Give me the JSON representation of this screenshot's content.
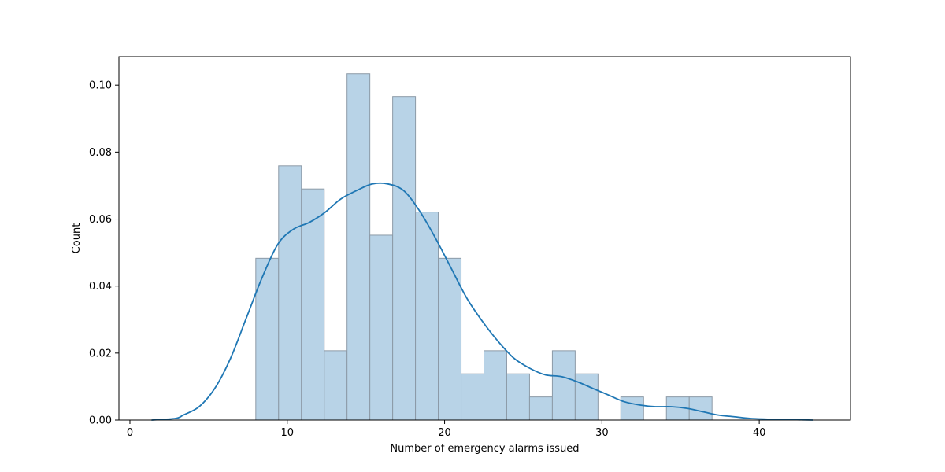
{
  "chart_data": {
    "type": "bar",
    "title": "",
    "xlabel": "Number of emergency alarms issued",
    "ylabel": "Count",
    "xlim": [
      -0.7,
      45.8
    ],
    "ylim": [
      0,
      0.1085
    ],
    "x_ticks": [
      0,
      10,
      20,
      30,
      40
    ],
    "x_tick_labels": [
      "0",
      "10",
      "20",
      "30",
      "40"
    ],
    "y_ticks": [
      0.0,
      0.02,
      0.04,
      0.06,
      0.08,
      0.1
    ],
    "y_tick_labels": [
      "0.00",
      "0.02",
      "0.04",
      "0.06",
      "0.08",
      "0.10"
    ],
    "bin_width": 1.45,
    "bars": [
      {
        "x0": 8.0,
        "x1": 9.45,
        "value": 0.0483
      },
      {
        "x0": 9.45,
        "x1": 10.9,
        "value": 0.0759
      },
      {
        "x0": 10.9,
        "x1": 12.35,
        "value": 0.069
      },
      {
        "x0": 12.35,
        "x1": 13.8,
        "value": 0.0207
      },
      {
        "x0": 13.8,
        "x1": 15.25,
        "value": 0.1034
      },
      {
        "x0": 15.25,
        "x1": 16.7,
        "value": 0.0552
      },
      {
        "x0": 16.7,
        "x1": 18.15,
        "value": 0.0966
      },
      {
        "x0": 18.15,
        "x1": 19.6,
        "value": 0.0621
      },
      {
        "x0": 19.6,
        "x1": 21.05,
        "value": 0.0483
      },
      {
        "x0": 21.05,
        "x1": 22.5,
        "value": 0.0138
      },
      {
        "x0": 22.5,
        "x1": 23.95,
        "value": 0.0207
      },
      {
        "x0": 23.95,
        "x1": 25.4,
        "value": 0.0138
      },
      {
        "x0": 25.4,
        "x1": 26.85,
        "value": 0.0069
      },
      {
        "x0": 26.85,
        "x1": 28.3,
        "value": 0.0207
      },
      {
        "x0": 28.3,
        "x1": 29.75,
        "value": 0.0138
      },
      {
        "x0": 29.75,
        "x1": 31.2,
        "value": 0.0
      },
      {
        "x0": 31.2,
        "x1": 32.65,
        "value": 0.0069
      },
      {
        "x0": 32.65,
        "x1": 34.1,
        "value": 0.0
      },
      {
        "x0": 34.1,
        "x1": 35.55,
        "value": 0.0069
      },
      {
        "x0": 35.55,
        "x1": 37.0,
        "value": 0.0069
      }
    ],
    "kde": {
      "x": [
        1.4,
        2.9,
        3.4,
        4.4,
        5.4,
        6.4,
        7.4,
        8.4,
        9.4,
        10.4,
        11.4,
        12.4,
        13.4,
        14.4,
        15.4,
        16.4,
        17.4,
        18.4,
        19.4,
        20.4,
        21.4,
        22.4,
        23.4,
        24.4,
        25.4,
        26.4,
        27.4,
        28.4,
        29.4,
        30.4,
        31.4,
        32.4,
        33.4,
        34.4,
        35.4,
        36.4,
        37.4,
        38.4,
        39.4,
        40.4,
        41.4,
        42.4,
        43.4
      ],
      "y": [
        0.0,
        0.0005,
        0.0015,
        0.004,
        0.0095,
        0.0185,
        0.0305,
        0.0425,
        0.0525,
        0.057,
        0.059,
        0.062,
        0.066,
        0.0685,
        0.0705,
        0.0705,
        0.0685,
        0.0625,
        0.0545,
        0.0455,
        0.0365,
        0.0295,
        0.0235,
        0.0185,
        0.0155,
        0.0135,
        0.013,
        0.0115,
        0.0095,
        0.0075,
        0.0055,
        0.0045,
        0.004,
        0.004,
        0.0035,
        0.0025,
        0.0015,
        0.001,
        0.0005,
        0.0003,
        0.0002,
        0.0001,
        0.0
      ]
    },
    "grid": false,
    "colors": {
      "bar_fill": "#b8d3e7",
      "bar_edge": "#8c9aa7",
      "kde_line": "#1f77b4",
      "axes": "#000000"
    }
  }
}
